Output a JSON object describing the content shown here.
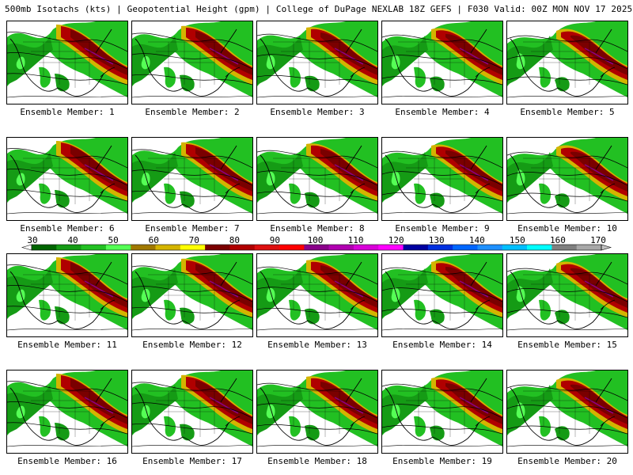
{
  "header": {
    "title": "500mb Isotachs (kts) | Geopotential Height (gpm) | College of DuPage NEXLAB   18Z GEFS | F030 Valid: 00Z MON NOV 17 2025"
  },
  "members": [
    "Ensemble Member: 1",
    "Ensemble Member: 2",
    "Ensemble Member: 3",
    "Ensemble Member: 4",
    "Ensemble Member: 5",
    "Ensemble Member: 6",
    "Ensemble Member: 7",
    "Ensemble Member: 8",
    "Ensemble Member: 9",
    "Ensemble Member: 10",
    "Ensemble Member: 11",
    "Ensemble Member: 12",
    "Ensemble Member: 13",
    "Ensemble Member: 14",
    "Ensemble Member: 15",
    "Ensemble Member: 16",
    "Ensemble Member: 17",
    "Ensemble Member: 18",
    "Ensemble Member: 19",
    "Ensemble Member: 20"
  ],
  "colorbar": {
    "ticks": [
      "30",
      "40",
      "50",
      "60",
      "70",
      "80",
      "90",
      "100",
      "110",
      "120",
      "130",
      "140",
      "150",
      "160",
      "170"
    ],
    "colors": [
      "#006400",
      "#159b15",
      "#22c022",
      "#55ff55",
      "#a07800",
      "#d4b400",
      "#ffff00",
      "#7a0000",
      "#b00000",
      "#dd1010",
      "#ff0000",
      "#8a008a",
      "#b000b0",
      "#d800d8",
      "#ff00ff",
      "#0000a0",
      "#0030e0",
      "#0066ff",
      "#1e90ff",
      "#00bfff",
      "#00ffff",
      "#808080",
      "#a8a8a8"
    ]
  }
}
